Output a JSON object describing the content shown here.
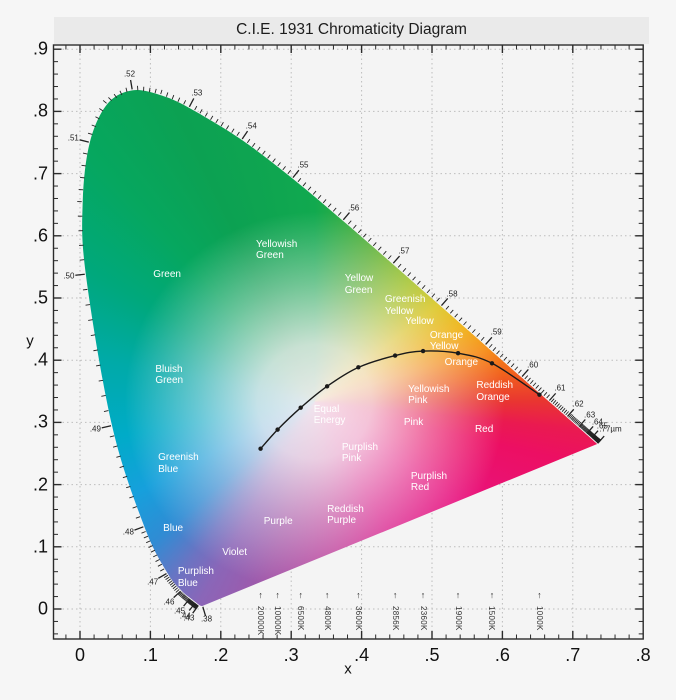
{
  "title": "C.I.E. 1931 Chromaticity Diagram",
  "chart_data": {
    "type": "area",
    "subtype": "chromaticity-diagram",
    "title": "C.I.E. 1931 Chromaticity Diagram",
    "x_axis": {
      "label": "x",
      "min": 0,
      "max": 0.8,
      "major_step": 0.1,
      "minor_step": 0.02,
      "tick_labels": [
        "0",
        ".1",
        ".2",
        ".3",
        ".4",
        ".5",
        ".6",
        ".7",
        ".8"
      ],
      "tick_values": [
        0,
        0.1,
        0.2,
        0.3,
        0.4,
        0.5,
        0.6,
        0.7,
        0.8
      ]
    },
    "y_axis": {
      "label": "y",
      "min": 0,
      "max": 0.9,
      "major_step": 0.1,
      "minor_step": 0.02,
      "tick_labels": [
        ".9",
        ".8",
        ".7",
        ".6",
        ".5",
        ".4",
        ".3",
        ".2",
        ".1",
        "0"
      ],
      "tick_values": [
        0.9,
        0.8,
        0.7,
        0.6,
        0.5,
        0.4,
        0.3,
        0.2,
        0.1,
        0
      ]
    },
    "grid": "dotted",
    "spectral_locus": [
      [
        380,
        0.1741,
        0.005
      ],
      [
        390,
        0.1738,
        0.0049
      ],
      [
        400,
        0.1733,
        0.0048
      ],
      [
        410,
        0.1726,
        0.0048
      ],
      [
        420,
        0.1714,
        0.0051
      ],
      [
        430,
        0.1689,
        0.0069
      ],
      [
        440,
        0.1644,
        0.0109
      ],
      [
        450,
        0.1566,
        0.0177
      ],
      [
        460,
        0.144,
        0.0297
      ],
      [
        470,
        0.1241,
        0.0578
      ],
      [
        480,
        0.0913,
        0.1327
      ],
      [
        490,
        0.0454,
        0.295
      ],
      [
        500,
        0.0082,
        0.5384
      ],
      [
        505,
        0.0039,
        0.6548
      ],
      [
        510,
        0.0139,
        0.7502
      ],
      [
        515,
        0.0389,
        0.812
      ],
      [
        520,
        0.0743,
        0.8338
      ],
      [
        525,
        0.1142,
        0.8262
      ],
      [
        530,
        0.1547,
        0.8059
      ],
      [
        540,
        0.2296,
        0.7543
      ],
      [
        550,
        0.3016,
        0.6923
      ],
      [
        560,
        0.3731,
        0.6245
      ],
      [
        570,
        0.4441,
        0.5547
      ],
      [
        580,
        0.5125,
        0.4866
      ],
      [
        590,
        0.5752,
        0.4242
      ],
      [
        600,
        0.627,
        0.3725
      ],
      [
        610,
        0.6658,
        0.334
      ],
      [
        620,
        0.6915,
        0.3083
      ],
      [
        630,
        0.7079,
        0.292
      ],
      [
        640,
        0.719,
        0.2809
      ],
      [
        650,
        0.726,
        0.274
      ],
      [
        660,
        0.73,
        0.27
      ],
      [
        670,
        0.732,
        0.268
      ],
      [
        680,
        0.7334,
        0.2666
      ],
      [
        690,
        0.7344,
        0.2656
      ],
      [
        700,
        0.7347,
        0.2653
      ]
    ],
    "wavelength_labels": [
      {
        "wl": 380,
        "text": ".38"
      },
      {
        "wl": 430,
        "text": ".43"
      },
      {
        "wl": 440,
        "text": ".44"
      },
      {
        "wl": 450,
        "text": ".45"
      },
      {
        "wl": 460,
        "text": ".46"
      },
      {
        "wl": 470,
        "text": ".47"
      },
      {
        "wl": 480,
        "text": ".48"
      },
      {
        "wl": 490,
        "text": ".49"
      },
      {
        "wl": 500,
        "text": ".50"
      },
      {
        "wl": 510,
        "text": ".51"
      },
      {
        "wl": 520,
        "text": ".52"
      },
      {
        "wl": 530,
        "text": ".53"
      },
      {
        "wl": 540,
        "text": ".54"
      },
      {
        "wl": 550,
        "text": ".55"
      },
      {
        "wl": 560,
        "text": ".56"
      },
      {
        "wl": 570,
        "text": ".57"
      },
      {
        "wl": 580,
        "text": ".58"
      },
      {
        "wl": 590,
        "text": ".59"
      },
      {
        "wl": 600,
        "text": ".60"
      },
      {
        "wl": 610,
        "text": ".61"
      },
      {
        "wl": 620,
        "text": ".62"
      },
      {
        "wl": 630,
        "text": ".63"
      },
      {
        "wl": 640,
        "text": ".64"
      },
      {
        "wl": 650,
        "text": ".65"
      },
      {
        "wl": 700,
        "text": ".77µm"
      }
    ],
    "planckian_locus": [
      {
        "temp": "20000K",
        "x": 0.2565,
        "y": 0.2577
      },
      {
        "temp": "10000K",
        "x": 0.2807,
        "y": 0.2884
      },
      {
        "temp": "6500K",
        "x": 0.3135,
        "y": 0.3237
      },
      {
        "temp": "4800K",
        "x": 0.351,
        "y": 0.358
      },
      {
        "temp": "3600K",
        "x": 0.3954,
        "y": 0.3885
      },
      {
        "temp": "2856K",
        "x": 0.4476,
        "y": 0.4074
      },
      {
        "temp": "2360K",
        "x": 0.4873,
        "y": 0.4147
      },
      {
        "temp": "1900K",
        "x": 0.537,
        "y": 0.4112
      },
      {
        "temp": "1500K",
        "x": 0.5852,
        "y": 0.395
      },
      {
        "temp": "1000K",
        "x": 0.6526,
        "y": 0.3446
      }
    ],
    "temp_arrow_glyph": "↑",
    "equal_energy_point": {
      "x": 0.3333,
      "y": 0.3333
    },
    "region_labels": [
      {
        "text": "Green",
        "x": 0.104,
        "y": 0.547
      },
      {
        "text": "Yellowish\nGreen",
        "x": 0.25,
        "y": 0.595
      },
      {
        "text": "Yellow\nGreen",
        "x": 0.376,
        "y": 0.54
      },
      {
        "text": "Greenish\nYellow",
        "x": 0.433,
        "y": 0.506
      },
      {
        "text": "Yellow",
        "x": 0.462,
        "y": 0.471
      },
      {
        "text": "Orange\nYellow",
        "x": 0.497,
        "y": 0.449
      },
      {
        "text": "Orange",
        "x": 0.518,
        "y": 0.405
      },
      {
        "text": "Bluish\nGreen",
        "x": 0.107,
        "y": 0.394
      },
      {
        "text": "Greenish\nBlue",
        "x": 0.111,
        "y": 0.252
      },
      {
        "text": "Blue",
        "x": 0.118,
        "y": 0.138
      },
      {
        "text": "Purplish\nBlue",
        "x": 0.139,
        "y": 0.069
      },
      {
        "text": "Violet",
        "x": 0.202,
        "y": 0.1
      },
      {
        "text": "Purple",
        "x": 0.261,
        "y": 0.15
      },
      {
        "text": "Reddish\nPurple",
        "x": 0.351,
        "y": 0.169
      },
      {
        "text": "Purplish\nPink",
        "x": 0.372,
        "y": 0.269
      },
      {
        "text": "Equal\nEnergy",
        "x": 0.332,
        "y": 0.33
      },
      {
        "text": "Pink",
        "x": 0.46,
        "y": 0.309
      },
      {
        "text": "Yellowish\nPink",
        "x": 0.466,
        "y": 0.362
      },
      {
        "text": "Reddish\nOrange",
        "x": 0.563,
        "y": 0.368
      },
      {
        "text": "Red",
        "x": 0.561,
        "y": 0.297
      },
      {
        "text": "Purplish\nRed",
        "x": 0.47,
        "y": 0.222
      }
    ],
    "colors": {
      "background": "#f6f6f6",
      "title_band": "#eaeaea",
      "plot_background": "#f4f4f4",
      "axis": "#2b2b2b",
      "grid": "#bdbdbd",
      "tick_text": "#111111",
      "wavelength_text": "#222222",
      "region_text": "#ffffff",
      "planckian_line": "#1a1a1a",
      "temp_text": "#333333",
      "gamut_green": "#0ca152",
      "gamut_red_corner": "#ec0f63",
      "gamut_blue": "#2f8cd4",
      "gamut_violet_corner": "#8a66b8"
    }
  }
}
